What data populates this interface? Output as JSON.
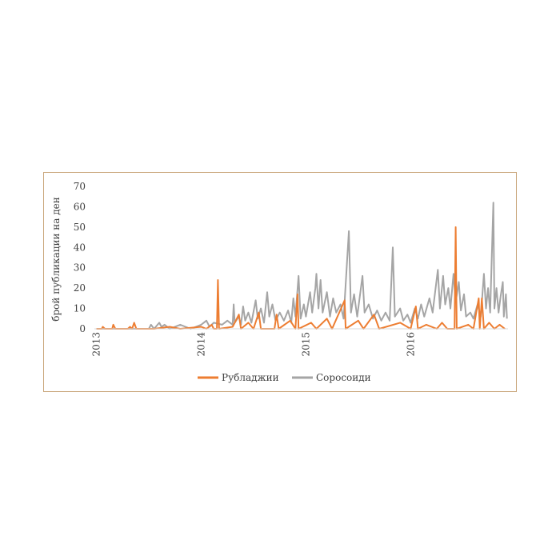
{
  "chart_data": {
    "type": "line",
    "title": "",
    "ylabel": "брой публикации на ден",
    "xlabel": "",
    "ylim": [
      0,
      70
    ],
    "yticks": [
      0,
      10,
      20,
      30,
      40,
      50,
      60,
      70
    ],
    "x_tick_labels": [
      "2013",
      "2014",
      "2015",
      "2016"
    ],
    "x_tick_years": [
      2013,
      2014,
      2015,
      2016
    ],
    "xlim": [
      2012.98,
      2016.93
    ],
    "grid": false,
    "legend": "bottom",
    "series": [
      {
        "name": "Рубладжии",
        "color": "#ed7d31",
        "points": [
          [
            2013.0,
            0
          ],
          [
            2013.05,
            0
          ],
          [
            2013.06,
            1
          ],
          [
            2013.08,
            0
          ],
          [
            2013.15,
            0
          ],
          [
            2013.16,
            2
          ],
          [
            2013.18,
            0
          ],
          [
            2013.3,
            0
          ],
          [
            2013.32,
            1
          ],
          [
            2013.34,
            0
          ],
          [
            2013.36,
            3
          ],
          [
            2013.38,
            0
          ],
          [
            2013.55,
            0
          ],
          [
            2013.7,
            1
          ],
          [
            2013.8,
            0
          ],
          [
            2014.0,
            1
          ],
          [
            2014.05,
            0
          ],
          [
            2014.1,
            2
          ],
          [
            2014.12,
            0
          ],
          [
            2014.15,
            0
          ],
          [
            2014.16,
            24
          ],
          [
            2014.17,
            0
          ],
          [
            2014.3,
            1
          ],
          [
            2014.36,
            7
          ],
          [
            2014.38,
            0
          ],
          [
            2014.45,
            3
          ],
          [
            2014.5,
            0
          ],
          [
            2014.55,
            8
          ],
          [
            2014.57,
            0
          ],
          [
            2014.7,
            0
          ],
          [
            2014.72,
            7
          ],
          [
            2014.74,
            0
          ],
          [
            2014.85,
            4
          ],
          [
            2014.9,
            0
          ],
          [
            2014.92,
            17
          ],
          [
            2014.93,
            0
          ],
          [
            2015.05,
            3
          ],
          [
            2015.1,
            0
          ],
          [
            2015.2,
            5
          ],
          [
            2015.25,
            0
          ],
          [
            2015.37,
            14
          ],
          [
            2015.38,
            0
          ],
          [
            2015.5,
            4
          ],
          [
            2015.55,
            0
          ],
          [
            2015.65,
            7
          ],
          [
            2015.7,
            0
          ],
          [
            2015.9,
            3
          ],
          [
            2016.0,
            0
          ],
          [
            2016.05,
            11
          ],
          [
            2016.07,
            0
          ],
          [
            2016.15,
            2
          ],
          [
            2016.25,
            0
          ],
          [
            2016.3,
            3
          ],
          [
            2016.35,
            0
          ],
          [
            2016.42,
            0
          ],
          [
            2016.43,
            50
          ],
          [
            2016.44,
            0
          ],
          [
            2016.55,
            2
          ],
          [
            2016.6,
            0
          ],
          [
            2016.65,
            15
          ],
          [
            2016.66,
            0
          ],
          [
            2016.68,
            15
          ],
          [
            2016.7,
            0
          ],
          [
            2016.75,
            3
          ],
          [
            2016.8,
            0
          ],
          [
            2016.85,
            2
          ],
          [
            2016.9,
            0
          ]
        ]
      },
      {
        "name": "Соросоиди",
        "color": "#a5a5a5",
        "points": [
          [
            2013.0,
            0
          ],
          [
            2013.5,
            0
          ],
          [
            2013.52,
            2
          ],
          [
            2013.55,
            0
          ],
          [
            2013.6,
            3
          ],
          [
            2013.62,
            1
          ],
          [
            2013.65,
            2
          ],
          [
            2013.7,
            0
          ],
          [
            2013.8,
            2
          ],
          [
            2013.85,
            1
          ],
          [
            2013.9,
            0
          ],
          [
            2014.0,
            2
          ],
          [
            2014.05,
            4
          ],
          [
            2014.08,
            1
          ],
          [
            2014.12,
            3
          ],
          [
            2014.2,
            2
          ],
          [
            2014.25,
            4
          ],
          [
            2014.3,
            2
          ],
          [
            2014.31,
            12
          ],
          [
            2014.32,
            3
          ],
          [
            2014.36,
            6
          ],
          [
            2014.38,
            2
          ],
          [
            2014.4,
            11
          ],
          [
            2014.42,
            4
          ],
          [
            2014.45,
            8
          ],
          [
            2014.48,
            3
          ],
          [
            2014.52,
            14
          ],
          [
            2014.54,
            5
          ],
          [
            2014.57,
            10
          ],
          [
            2014.6,
            3
          ],
          [
            2014.63,
            18
          ],
          [
            2014.65,
            6
          ],
          [
            2014.68,
            12
          ],
          [
            2014.71,
            4
          ],
          [
            2014.75,
            8
          ],
          [
            2014.79,
            4
          ],
          [
            2014.83,
            9
          ],
          [
            2014.86,
            3
          ],
          [
            2014.88,
            15
          ],
          [
            2014.9,
            6
          ],
          [
            2014.93,
            26
          ],
          [
            2014.95,
            5
          ],
          [
            2014.98,
            12
          ],
          [
            2015.0,
            6
          ],
          [
            2015.04,
            18
          ],
          [
            2015.06,
            8
          ],
          [
            2015.09,
            20
          ],
          [
            2015.1,
            27
          ],
          [
            2015.12,
            10
          ],
          [
            2015.14,
            24
          ],
          [
            2015.16,
            8
          ],
          [
            2015.2,
            18
          ],
          [
            2015.23,
            6
          ],
          [
            2015.26,
            15
          ],
          [
            2015.29,
            8
          ],
          [
            2015.33,
            12
          ],
          [
            2015.36,
            5
          ],
          [
            2015.41,
            48
          ],
          [
            2015.43,
            8
          ],
          [
            2015.46,
            17
          ],
          [
            2015.49,
            6
          ],
          [
            2015.54,
            26
          ],
          [
            2015.56,
            8
          ],
          [
            2015.6,
            12
          ],
          [
            2015.64,
            5
          ],
          [
            2015.68,
            9
          ],
          [
            2015.72,
            4
          ],
          [
            2015.76,
            8
          ],
          [
            2015.8,
            4
          ],
          [
            2015.83,
            40
          ],
          [
            2015.85,
            6
          ],
          [
            2015.9,
            10
          ],
          [
            2015.93,
            4
          ],
          [
            2015.97,
            7
          ],
          [
            2016.0,
            3
          ],
          [
            2016.04,
            10
          ],
          [
            2016.07,
            5
          ],
          [
            2016.1,
            12
          ],
          [
            2016.13,
            6
          ],
          [
            2016.18,
            15
          ],
          [
            2016.21,
            8
          ],
          [
            2016.26,
            29
          ],
          [
            2016.28,
            10
          ],
          [
            2016.31,
            26
          ],
          [
            2016.33,
            12
          ],
          [
            2016.36,
            20
          ],
          [
            2016.38,
            10
          ],
          [
            2016.41,
            27
          ],
          [
            2016.43,
            13
          ],
          [
            2016.46,
            23
          ],
          [
            2016.48,
            9
          ],
          [
            2016.51,
            17
          ],
          [
            2016.53,
            6
          ],
          [
            2016.57,
            8
          ],
          [
            2016.6,
            5
          ],
          [
            2016.64,
            12
          ],
          [
            2016.67,
            6
          ],
          [
            2016.7,
            27
          ],
          [
            2016.72,
            10
          ],
          [
            2016.74,
            20
          ],
          [
            2016.76,
            8
          ],
          [
            2016.79,
            62
          ],
          [
            2016.8,
            10
          ],
          [
            2016.82,
            20
          ],
          [
            2016.84,
            8
          ],
          [
            2016.86,
            16
          ],
          [
            2016.88,
            23
          ],
          [
            2016.89,
            6
          ],
          [
            2016.91,
            17
          ],
          [
            2016.92,
            5
          ]
        ]
      }
    ]
  }
}
